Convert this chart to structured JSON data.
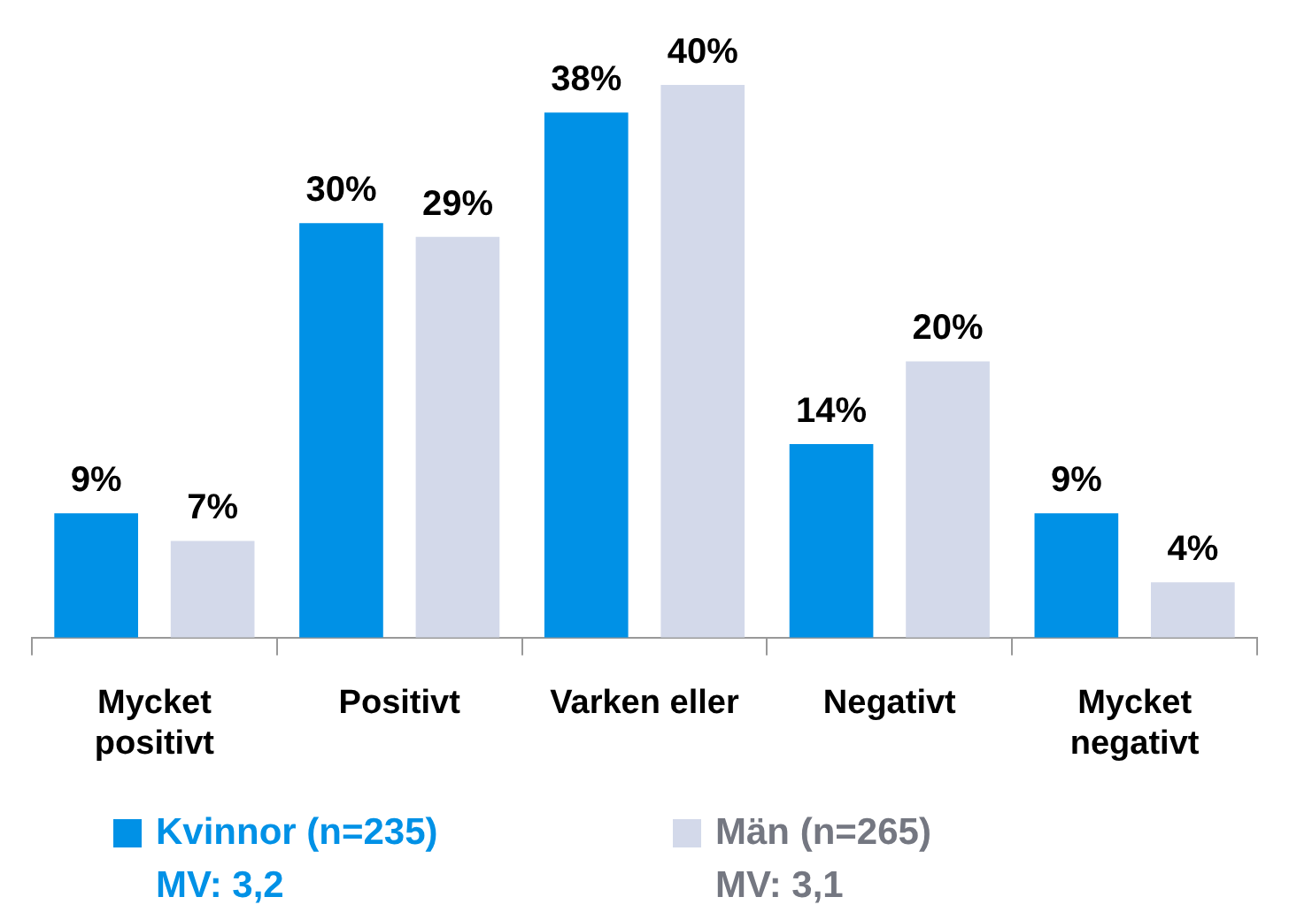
{
  "chart_data": {
    "type": "bar",
    "categories": [
      "Mycket positivt",
      "Positivt",
      "Varken eller",
      "Negativt",
      "Mycket negativt"
    ],
    "series": [
      {
        "name": "Kvinnor (n=235)",
        "color": "#0091e6",
        "values": [
          9,
          30,
          38,
          14,
          9
        ],
        "value_labels": [
          "9%",
          "30%",
          "38%",
          "14%",
          "9%"
        ]
      },
      {
        "name": "Män (n=265)",
        "color": "#d3d9ea",
        "values": [
          7,
          29,
          40,
          20,
          4
        ],
        "value_labels": [
          "7%",
          "29%",
          "40%",
          "20%",
          "4%"
        ]
      }
    ],
    "relative": false,
    "ylim": [
      0,
      40
    ],
    "legend": "bottom",
    "grid": false,
    "annotations": [
      "MV: 3,2",
      "MV: 3,1"
    ]
  }
}
